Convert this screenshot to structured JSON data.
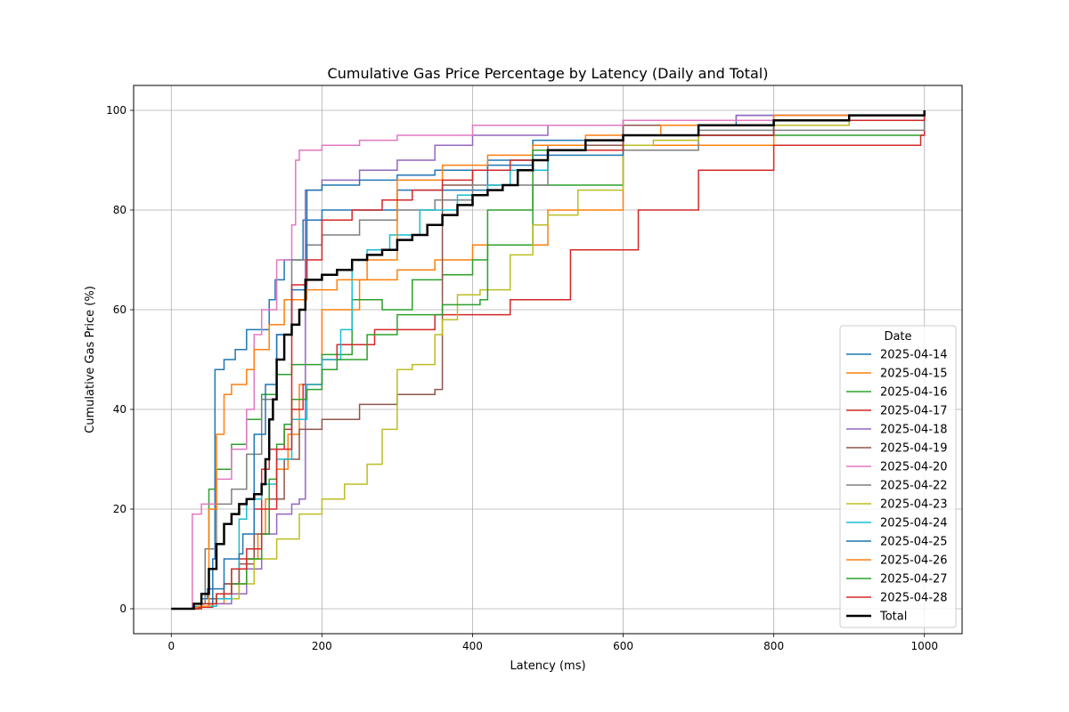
{
  "chart_data": {
    "type": "line",
    "step": true,
    "title": "Cumulative Gas Price Percentage by Latency (Daily and Total)",
    "xlabel": "Latency (ms)",
    "ylabel": "Cumulative Gas Price (%)",
    "xlim": [
      -50,
      1050
    ],
    "ylim": [
      -5,
      105
    ],
    "xticks": [
      0,
      200,
      400,
      600,
      800,
      1000
    ],
    "yticks": [
      0,
      20,
      40,
      60,
      80,
      100
    ],
    "grid": true,
    "legend": {
      "title": "Date",
      "position": "lower right"
    },
    "series": [
      {
        "name": "2025-04-14",
        "color": "#1f77b4",
        "x": [
          0,
          28,
          40,
          48,
          55,
          58,
          70,
          85,
          100,
          130,
          138,
          150,
          175,
          200,
          300,
          420,
          480,
          600,
          750,
          1000
        ],
        "y": [
          0,
          0.5,
          2,
          4,
          10,
          48,
          50,
          52,
          56,
          62,
          66,
          70,
          78,
          80,
          84,
          90,
          94,
          97,
          99,
          100
        ]
      },
      {
        "name": "2025-04-15",
        "color": "#ff7f0e",
        "x": [
          0,
          30,
          50,
          70,
          90,
          100,
          115,
          125,
          140,
          155,
          170,
          200,
          250,
          300,
          350,
          400,
          500,
          600,
          800,
          1000
        ],
        "y": [
          0,
          0.3,
          1,
          3,
          5,
          10,
          15,
          22,
          28,
          35,
          45,
          60,
          66,
          68,
          70,
          73,
          80,
          93,
          98,
          100
        ]
      },
      {
        "name": "2025-04-16",
        "color": "#2ca02c",
        "x": [
          0,
          28,
          40,
          45,
          50,
          60,
          80,
          100,
          120,
          140,
          160,
          200,
          240,
          280,
          320,
          360,
          400,
          420,
          480,
          600,
          1000
        ],
        "y": [
          0,
          0.5,
          3,
          12,
          24,
          28,
          33,
          38,
          43,
          47,
          49,
          51,
          62,
          60,
          66,
          67,
          70,
          73,
          85,
          95,
          100
        ]
      },
      {
        "name": "2025-04-17",
        "color": "#d62728",
        "x": [
          0,
          35,
          55,
          70,
          90,
          110,
          120,
          130,
          150,
          160,
          175,
          200,
          220,
          270,
          350,
          450,
          530,
          620,
          700,
          800,
          995,
          1000
        ],
        "y": [
          0,
          0.3,
          2,
          5,
          10,
          20,
          28,
          32,
          36,
          40,
          45,
          50,
          53,
          56,
          59,
          62,
          72,
          80,
          88,
          93,
          95,
          100
        ]
      },
      {
        "name": "2025-04-18",
        "color": "#9467bd",
        "x": [
          0,
          30,
          50,
          80,
          100,
          120,
          140,
          160,
          170,
          178,
          200,
          250,
          300,
          350,
          400,
          500,
          600,
          750,
          1000
        ],
        "y": [
          0,
          0.5,
          1,
          3,
          8,
          15,
          19,
          21,
          22,
          84,
          86,
          88,
          90,
          93,
          95,
          97,
          98,
          99,
          100
        ]
      },
      {
        "name": "2025-04-19",
        "color": "#8c564b",
        "x": [
          0,
          30,
          50,
          70,
          90,
          110,
          130,
          150,
          170,
          200,
          250,
          300,
          350,
          360,
          400,
          500,
          600,
          800,
          1000
        ],
        "y": [
          0,
          0.5,
          2,
          5,
          9,
          15,
          22,
          30,
          36,
          38,
          41,
          43,
          44,
          85,
          88,
          93,
          97,
          99,
          100
        ]
      },
      {
        "name": "2025-04-20",
        "color": "#e377c2",
        "x": [
          0,
          28,
          40,
          60,
          80,
          100,
          110,
          120,
          140,
          160,
          165,
          170,
          200,
          250,
          300,
          400,
          600,
          800,
          1000
        ],
        "y": [
          0,
          19,
          21,
          26,
          32,
          40,
          55,
          60,
          70,
          77,
          90,
          92,
          93,
          94,
          95,
          97,
          98,
          99,
          100
        ]
      },
      {
        "name": "2025-04-22",
        "color": "#7f7f7f",
        "x": [
          0,
          30,
          45,
          60,
          80,
          100,
          120,
          140,
          160,
          180,
          200,
          250,
          300,
          350,
          400,
          500,
          700,
          1000
        ],
        "y": [
          0,
          1,
          12,
          21,
          24,
          31,
          42,
          55,
          70,
          73,
          75,
          78,
          80,
          82,
          85,
          92,
          96,
          100
        ]
      },
      {
        "name": "2025-04-23",
        "color": "#bcbd22",
        "x": [
          0,
          30,
          60,
          90,
          110,
          140,
          170,
          200,
          230,
          260,
          280,
          300,
          320,
          350,
          360,
          380,
          410,
          450,
          480,
          500,
          540,
          600,
          640,
          700,
          900,
          1000
        ],
        "y": [
          0,
          0.5,
          2,
          5,
          10,
          14,
          19,
          22,
          25,
          29,
          36,
          48,
          49,
          55,
          58,
          63,
          64,
          71,
          77,
          79,
          84,
          93,
          94,
          97,
          98,
          100
        ]
      },
      {
        "name": "2025-04-24",
        "color": "#17becf",
        "x": [
          0,
          30,
          60,
          80,
          90,
          100,
          120,
          140,
          160,
          180,
          200,
          225,
          240,
          260,
          290,
          330,
          380,
          420,
          450,
          500,
          600,
          800,
          1000
        ],
        "y": [
          0,
          0.5,
          2,
          8,
          18,
          22,
          25,
          30,
          38,
          45,
          50,
          56,
          70,
          72,
          75,
          80,
          83,
          85,
          88,
          92,
          95,
          98,
          100
        ]
      },
      {
        "name": "2025-04-25",
        "color": "#1f77b4",
        "x": [
          0,
          40,
          55,
          70,
          90,
          95,
          110,
          125,
          140,
          160,
          180,
          200,
          250,
          300,
          350,
          420,
          480,
          600,
          800,
          1000
        ],
        "y": [
          0,
          1,
          4,
          10,
          11,
          15,
          35,
          45,
          55,
          64,
          84,
          85,
          86,
          87,
          88,
          89,
          91,
          95,
          98,
          100
        ]
      },
      {
        "name": "2025-04-26",
        "color": "#ff7f0e",
        "x": [
          0,
          35,
          50,
          60,
          70,
          80,
          100,
          110,
          130,
          150,
          180,
          220,
          260,
          300,
          360,
          420,
          480,
          550,
          650,
          800,
          1000
        ],
        "y": [
          0,
          0.5,
          20,
          35,
          43,
          45,
          48,
          52,
          57,
          62,
          64,
          66,
          70,
          86,
          89,
          91,
          93,
          95,
          97,
          99,
          100
        ]
      },
      {
        "name": "2025-04-27",
        "color": "#2ca02c",
        "x": [
          0,
          40,
          60,
          80,
          100,
          120,
          130,
          140,
          150,
          160,
          180,
          200,
          220,
          260,
          300,
          360,
          410,
          420,
          480,
          600,
          800,
          1000
        ],
        "y": [
          0,
          1,
          3,
          5,
          10,
          15,
          26,
          33,
          37,
          42,
          44,
          48,
          50,
          55,
          59,
          61,
          62,
          80,
          92,
          95,
          98,
          100
        ]
      },
      {
        "name": "2025-04-28",
        "color": "#d62728",
        "x": [
          0,
          40,
          60,
          80,
          100,
          120,
          140,
          160,
          180,
          200,
          240,
          280,
          320,
          360,
          400,
          450,
          500,
          600,
          800,
          1000
        ],
        "y": [
          0,
          1,
          3,
          8,
          12,
          20,
          32,
          65,
          70,
          78,
          80,
          82,
          84,
          86,
          88,
          90,
          92,
          95,
          98,
          100
        ]
      },
      {
        "name": "Total",
        "color": "#000000",
        "thick": true,
        "x": [
          0,
          30,
          40,
          50,
          60,
          70,
          80,
          90,
          100,
          110,
          120,
          125,
          130,
          135,
          140,
          150,
          160,
          170,
          178,
          200,
          220,
          240,
          260,
          280,
          300,
          320,
          340,
          360,
          380,
          400,
          420,
          440,
          460,
          480,
          500,
          550,
          600,
          700,
          800,
          900,
          1000
        ],
        "y": [
          0,
          1,
          3,
          8,
          13,
          17,
          19,
          21,
          22,
          23,
          25,
          30,
          38,
          42,
          50,
          55,
          57,
          60,
          66,
          67,
          68,
          70,
          71,
          72,
          74,
          75,
          77,
          79,
          81,
          83,
          84,
          85,
          88,
          90,
          92,
          94,
          95,
          97,
          98,
          99,
          100
        ]
      }
    ]
  }
}
